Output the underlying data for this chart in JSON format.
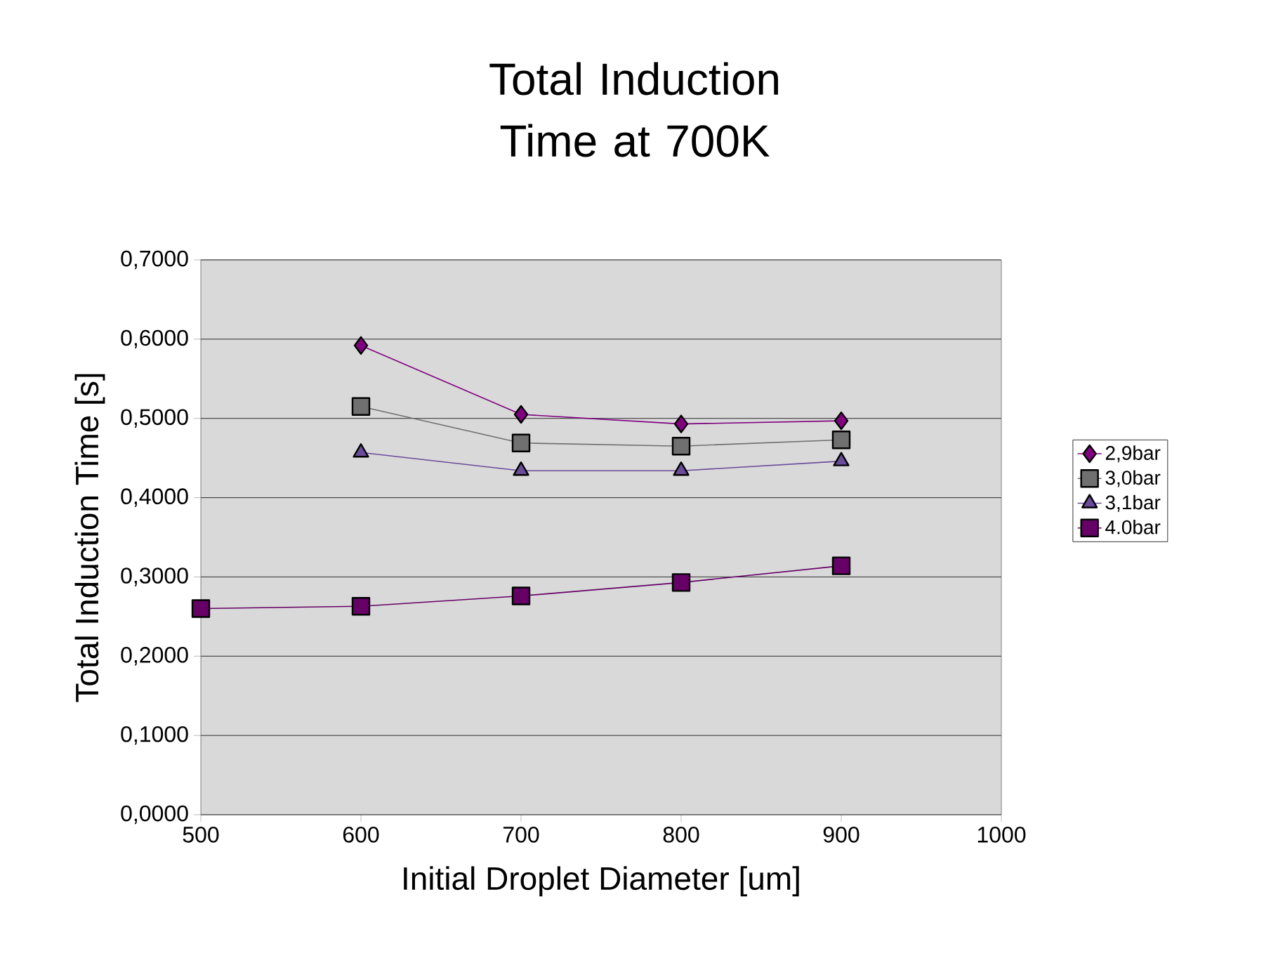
{
  "chart_data": {
    "type": "line",
    "title": "Total Induction Time at 700K",
    "xlabel": "Initial Droplet Diameter [um]",
    "ylabel": "Total Induction Time [s]",
    "x": [
      500,
      600,
      700,
      800,
      900
    ],
    "series": [
      {
        "name": "2,9bar",
        "color": "#800080",
        "marker": "diamond",
        "values": [
          null,
          0.592,
          0.505,
          0.493,
          0.497
        ]
      },
      {
        "name": "3,0bar",
        "color": "#707070",
        "marker": "square",
        "values": [
          null,
          0.515,
          0.469,
          0.465,
          0.473
        ]
      },
      {
        "name": "3,1bar",
        "color": "#6b4c9a",
        "marker": "triangle",
        "values": [
          null,
          0.457,
          0.434,
          0.434,
          0.446
        ]
      },
      {
        "name": "4.0bar",
        "color": "#660066",
        "marker": "square",
        "values": [
          0.26,
          0.263,
          0.276,
          0.293,
          0.314
        ]
      }
    ],
    "xlim": [
      500,
      1000
    ],
    "xticks": [
      500,
      600,
      700,
      800,
      900,
      1000
    ],
    "ylim": [
      0,
      0.7
    ],
    "yticks": [
      {
        "value": 0,
        "label": "0,0000"
      },
      {
        "value": 0.1,
        "label": "0,1000"
      },
      {
        "value": 0.2,
        "label": "0,2000"
      },
      {
        "value": 0.3,
        "label": "0,3000"
      },
      {
        "value": 0.4,
        "label": "0,4000"
      },
      {
        "value": 0.5,
        "label": "0,5000"
      },
      {
        "value": 0.6,
        "label": "0,6000"
      },
      {
        "value": 0.7,
        "label": "0,7000"
      }
    ],
    "grid": "y",
    "legend": "right",
    "line_style": "solid"
  }
}
